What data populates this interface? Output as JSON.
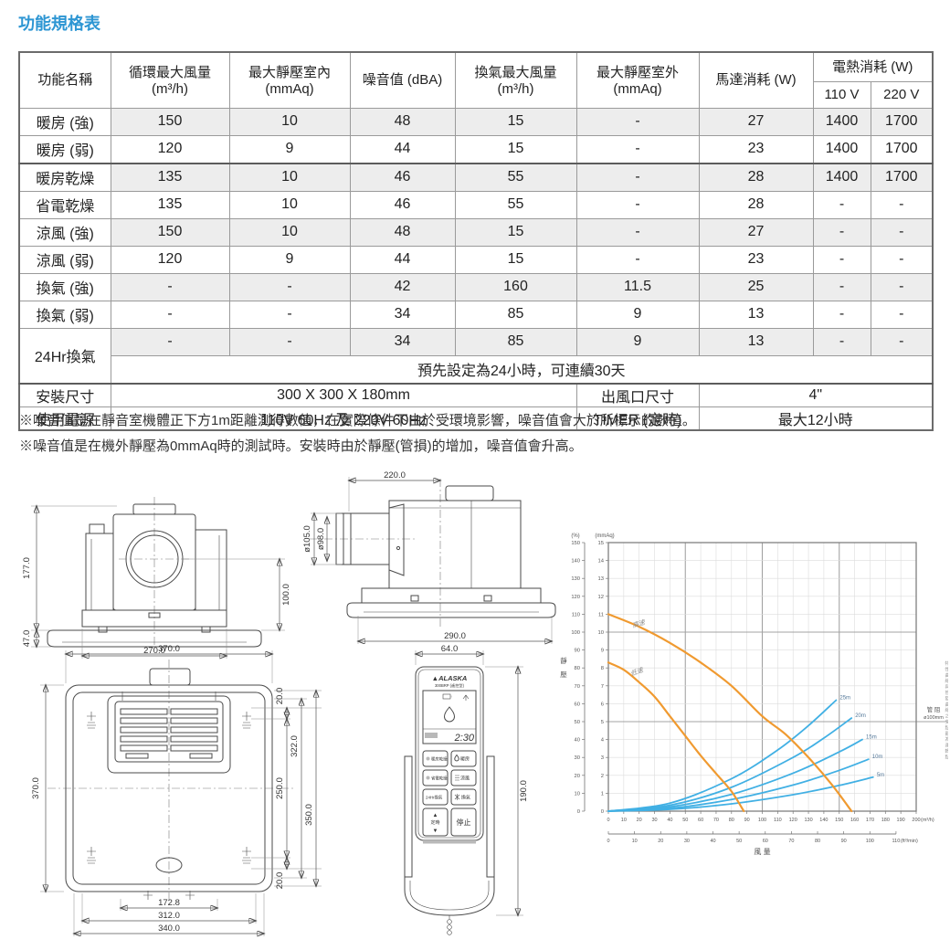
{
  "page": {
    "title": "功能規格表",
    "title_color": "#2E96D3"
  },
  "spec_table": {
    "columns": [
      {
        "label": "功能名稱",
        "sub": ""
      },
      {
        "label": "循環最大風量",
        "sub": "(m³/h)"
      },
      {
        "label": "最大靜壓室內",
        "sub": "(mmAq)"
      },
      {
        "label": "噪音值 (dBA)",
        "sub": ""
      },
      {
        "label": "換氣最大風量",
        "sub": "(m³/h)"
      },
      {
        "label": "最大靜壓室外",
        "sub": "(mmAq)"
      },
      {
        "label": "馬達消耗 (W)",
        "sub": ""
      },
      {
        "label": "電熱消耗 (W)",
        "subcols": [
          "110 V",
          "220 V"
        ]
      }
    ],
    "rows": [
      [
        "暖房 (強)",
        "150",
        "10",
        "48",
        "15",
        "-",
        "27",
        "1400",
        "1700"
      ],
      [
        "暖房 (弱)",
        "120",
        "9",
        "44",
        "15",
        "-",
        "23",
        "1400",
        "1700"
      ],
      [
        "暖房乾燥",
        "135",
        "10",
        "46",
        "55",
        "-",
        "28",
        "1400",
        "1700"
      ],
      [
        "省電乾燥",
        "135",
        "10",
        "46",
        "55",
        "-",
        "28",
        "-",
        "-"
      ],
      [
        "涼風 (強)",
        "150",
        "10",
        "48",
        "15",
        "-",
        "27",
        "-",
        "-"
      ],
      [
        "涼風 (弱)",
        "120",
        "9",
        "44",
        "15",
        "-",
        "23",
        "-",
        "-"
      ],
      [
        "換氣 (強)",
        "-",
        "-",
        "42",
        "160",
        "11.5",
        "25",
        "-",
        "-"
      ],
      [
        "換氣 (弱)",
        "-",
        "-",
        "34",
        "85",
        "9",
        "13",
        "-",
        "-"
      ]
    ],
    "row_24hr": {
      "label": "24Hr換氣",
      "values": [
        "-",
        "-",
        "34",
        "85",
        "9",
        "13",
        "-",
        "-"
      ],
      "note": "預先設定為24小時，可連續30天"
    },
    "install_row": {
      "label": "安裝尺寸",
      "value": "300 X 300 X 180mm",
      "outlet_label": "出風口尺寸",
      "outlet_value": "4\""
    },
    "power_row": {
      "label": "使用電源",
      "value": "110V 60Hz 及 220V 60Hz",
      "timer_label": "TIMER (定時)",
      "timer_value": "最大12小時"
    }
  },
  "notes": [
    "※噪音值是在靜音室機體正下方1m距離測得數值，在實際條件下由於受環境影響，噪音值會大於所標示的數值。",
    "※噪音值是在機外靜壓為0mmAq時的測試時。安裝時由於靜壓(管損)的增加，噪音值會升高。"
  ],
  "drawings": {
    "front": {
      "h_total": "177.0",
      "h_panel": "47.0",
      "h_duct": "100.0",
      "w_body": "270.0"
    },
    "side": {
      "w_top": "220.0",
      "dia_outer": "ø105.0",
      "dia_inner": "ø98.0",
      "w_bottom": "290.0"
    },
    "bottom": {
      "w_top": "370.0",
      "h_left": "370.0",
      "off_top": "20.0",
      "pitch": "250.0",
      "h_inner": "322.0",
      "h_outer": "350.0",
      "off_bottom": "20.0",
      "w_inner": "172.8",
      "w_mid": "312.0",
      "w_outer": "340.0"
    },
    "remote_dims": {
      "width": "64.0",
      "height": "190.0"
    }
  },
  "remote": {
    "brand": "ALASKA",
    "model": "300BRP (遙控型)",
    "time": "2:30",
    "buttons": [
      {
        "left": "暖房乾燥",
        "right": "暖房"
      },
      {
        "left": "省電乾燥",
        "right": "涼風"
      },
      {
        "left": "24Hr換氣",
        "right": "換氣"
      }
    ],
    "up": "▲",
    "timer": "定時",
    "down": "▼",
    "stop": "停止"
  },
  "chart_data": {
    "type": "line",
    "title": "",
    "xlabel": "風 量",
    "ylabel": "靜壓",
    "x_axis": {
      "min": 0,
      "max": 200,
      "step": 10,
      "unit": "(m³/h)"
    },
    "x_axis_secondary": {
      "min": 0,
      "max": 110,
      "step": 10,
      "unit": "(ft³/min)",
      "factor_to_m3h": 1.699
    },
    "y_axis": {
      "min": 0,
      "max": 15,
      "step": 1,
      "unit": "(mmAq)"
    },
    "y_axis_secondary": {
      "min": 0,
      "max": 150,
      "step": 10,
      "unit": "(%)"
    },
    "grid": true,
    "duct_loss_label": [
      "管 阻",
      "ø100mm"
    ],
    "side_note": "特性曲線與管阻曲線之交點即為運轉點",
    "series": [
      {
        "name": "高速",
        "kind": "fan",
        "color": "#F09A30",
        "width": 2.2,
        "label_at": [
          16,
          10.25
        ],
        "label_rotate": -16,
        "points": [
          [
            0,
            11
          ],
          [
            20,
            10.3
          ],
          [
            40,
            9.4
          ],
          [
            60,
            8.3
          ],
          [
            80,
            7.0
          ],
          [
            100,
            5.3
          ],
          [
            115,
            4.3
          ],
          [
            130,
            3.0
          ],
          [
            145,
            1.5
          ],
          [
            158,
            0
          ]
        ]
      },
      {
        "name": "低速",
        "kind": "fan",
        "color": "#F09A30",
        "width": 2.2,
        "label_at": [
          15,
          7.55
        ],
        "label_rotate": -20,
        "points": [
          [
            0,
            8.3
          ],
          [
            10,
            7.9
          ],
          [
            20,
            7.2
          ],
          [
            30,
            6.4
          ],
          [
            40,
            5.3
          ],
          [
            50,
            4.2
          ],
          [
            60,
            3.1
          ],
          [
            70,
            2.1
          ],
          [
            80,
            1.1
          ],
          [
            88,
            0
          ]
        ]
      },
      {
        "name": "25m",
        "kind": "duct",
        "color": "#41B0E4",
        "width": 1.8,
        "end_label": true,
        "points": [
          [
            0,
            0
          ],
          [
            40,
            0.45
          ],
          [
            80,
            1.81
          ],
          [
            110,
            3.42
          ],
          [
            130,
            4.78
          ],
          [
            148,
            6.2
          ]
        ]
      },
      {
        "name": "20m",
        "kind": "duct",
        "color": "#41B0E4",
        "width": 1.8,
        "end_label": true,
        "points": [
          [
            0,
            0
          ],
          [
            40,
            0.33
          ],
          [
            80,
            1.33
          ],
          [
            120,
            3.0
          ],
          [
            140,
            4.08
          ],
          [
            158,
            5.2
          ]
        ]
      },
      {
        "name": "15m",
        "kind": "duct",
        "color": "#41B0E4",
        "width": 1.8,
        "end_label": true,
        "points": [
          [
            0,
            0
          ],
          [
            40,
            0.24
          ],
          [
            80,
            0.94
          ],
          [
            120,
            2.12
          ],
          [
            150,
            3.31
          ],
          [
            165,
            4.0
          ]
        ]
      },
      {
        "name": "10m",
        "kind": "duct",
        "color": "#41B0E4",
        "width": 1.8,
        "end_label": true,
        "points": [
          [
            0,
            0
          ],
          [
            40,
            0.16
          ],
          [
            80,
            0.65
          ],
          [
            120,
            1.46
          ],
          [
            150,
            2.28
          ],
          [
            169,
            2.9
          ]
        ]
      },
      {
        "name": "5m",
        "kind": "duct",
        "color": "#41B0E4",
        "width": 1.8,
        "end_label": true,
        "points": [
          [
            0,
            0
          ],
          [
            40,
            0.1
          ],
          [
            80,
            0.41
          ],
          [
            120,
            0.92
          ],
          [
            150,
            1.44
          ],
          [
            172,
            1.9
          ]
        ]
      }
    ]
  }
}
